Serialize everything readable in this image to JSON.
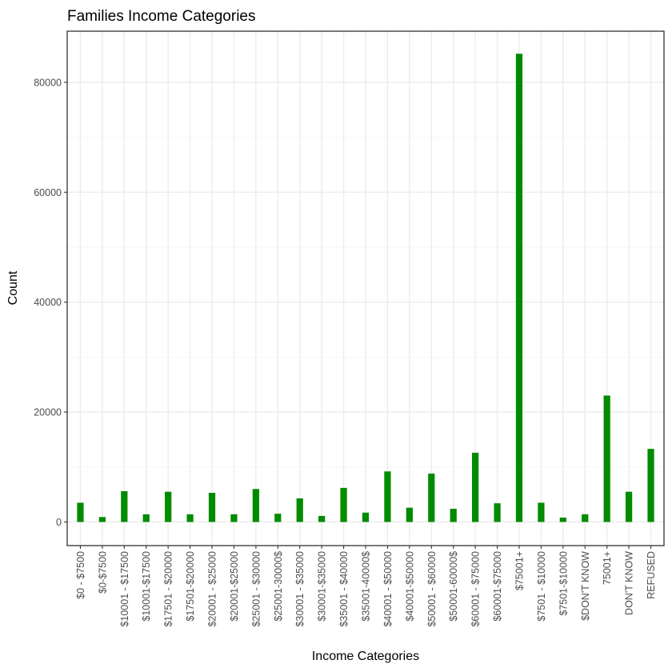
{
  "chart_data": {
    "type": "bar",
    "title": "Families Income Categories",
    "xlabel": "Income Categories",
    "ylabel": "Count",
    "categories": [
      "$0 - $7500",
      "$0-$7500",
      "$10001 - $17500",
      "$10001-$17500",
      "$17501 - $20000",
      "$17501-$20000",
      "$20001 - $25000",
      "$20001-$25000",
      "$25001 - $30000",
      "$25001-30000$",
      "$30001 - $35000",
      "$30001-$35000",
      "$35001 - $40000",
      "$35001-40000$",
      "$40001 - $50000",
      "$40001-$50000",
      "$50001 - $60000",
      "$50001-60000$",
      "$60001 - $75000",
      "$60001-$75000",
      "$75001+",
      "$7501 - $10000",
      "$7501-$10000",
      "$DON'T KNOW",
      "75001+",
      "DON'T KNOW",
      "REFUSED"
    ],
    "values": [
      3500,
      900,
      5600,
      1400,
      5500,
      1400,
      5300,
      1400,
      6000,
      1500,
      4300,
      1100,
      6200,
      1700,
      9200,
      2600,
      8800,
      2400,
      12600,
      3400,
      85200,
      3500,
      800,
      1400,
      23000,
      5500,
      13300
    ],
    "ylim": [
      -4300,
      89300
    ],
    "yticks": [
      0,
      20000,
      40000,
      60000,
      80000
    ],
    "grid": true,
    "bar_color": "#008b00"
  }
}
